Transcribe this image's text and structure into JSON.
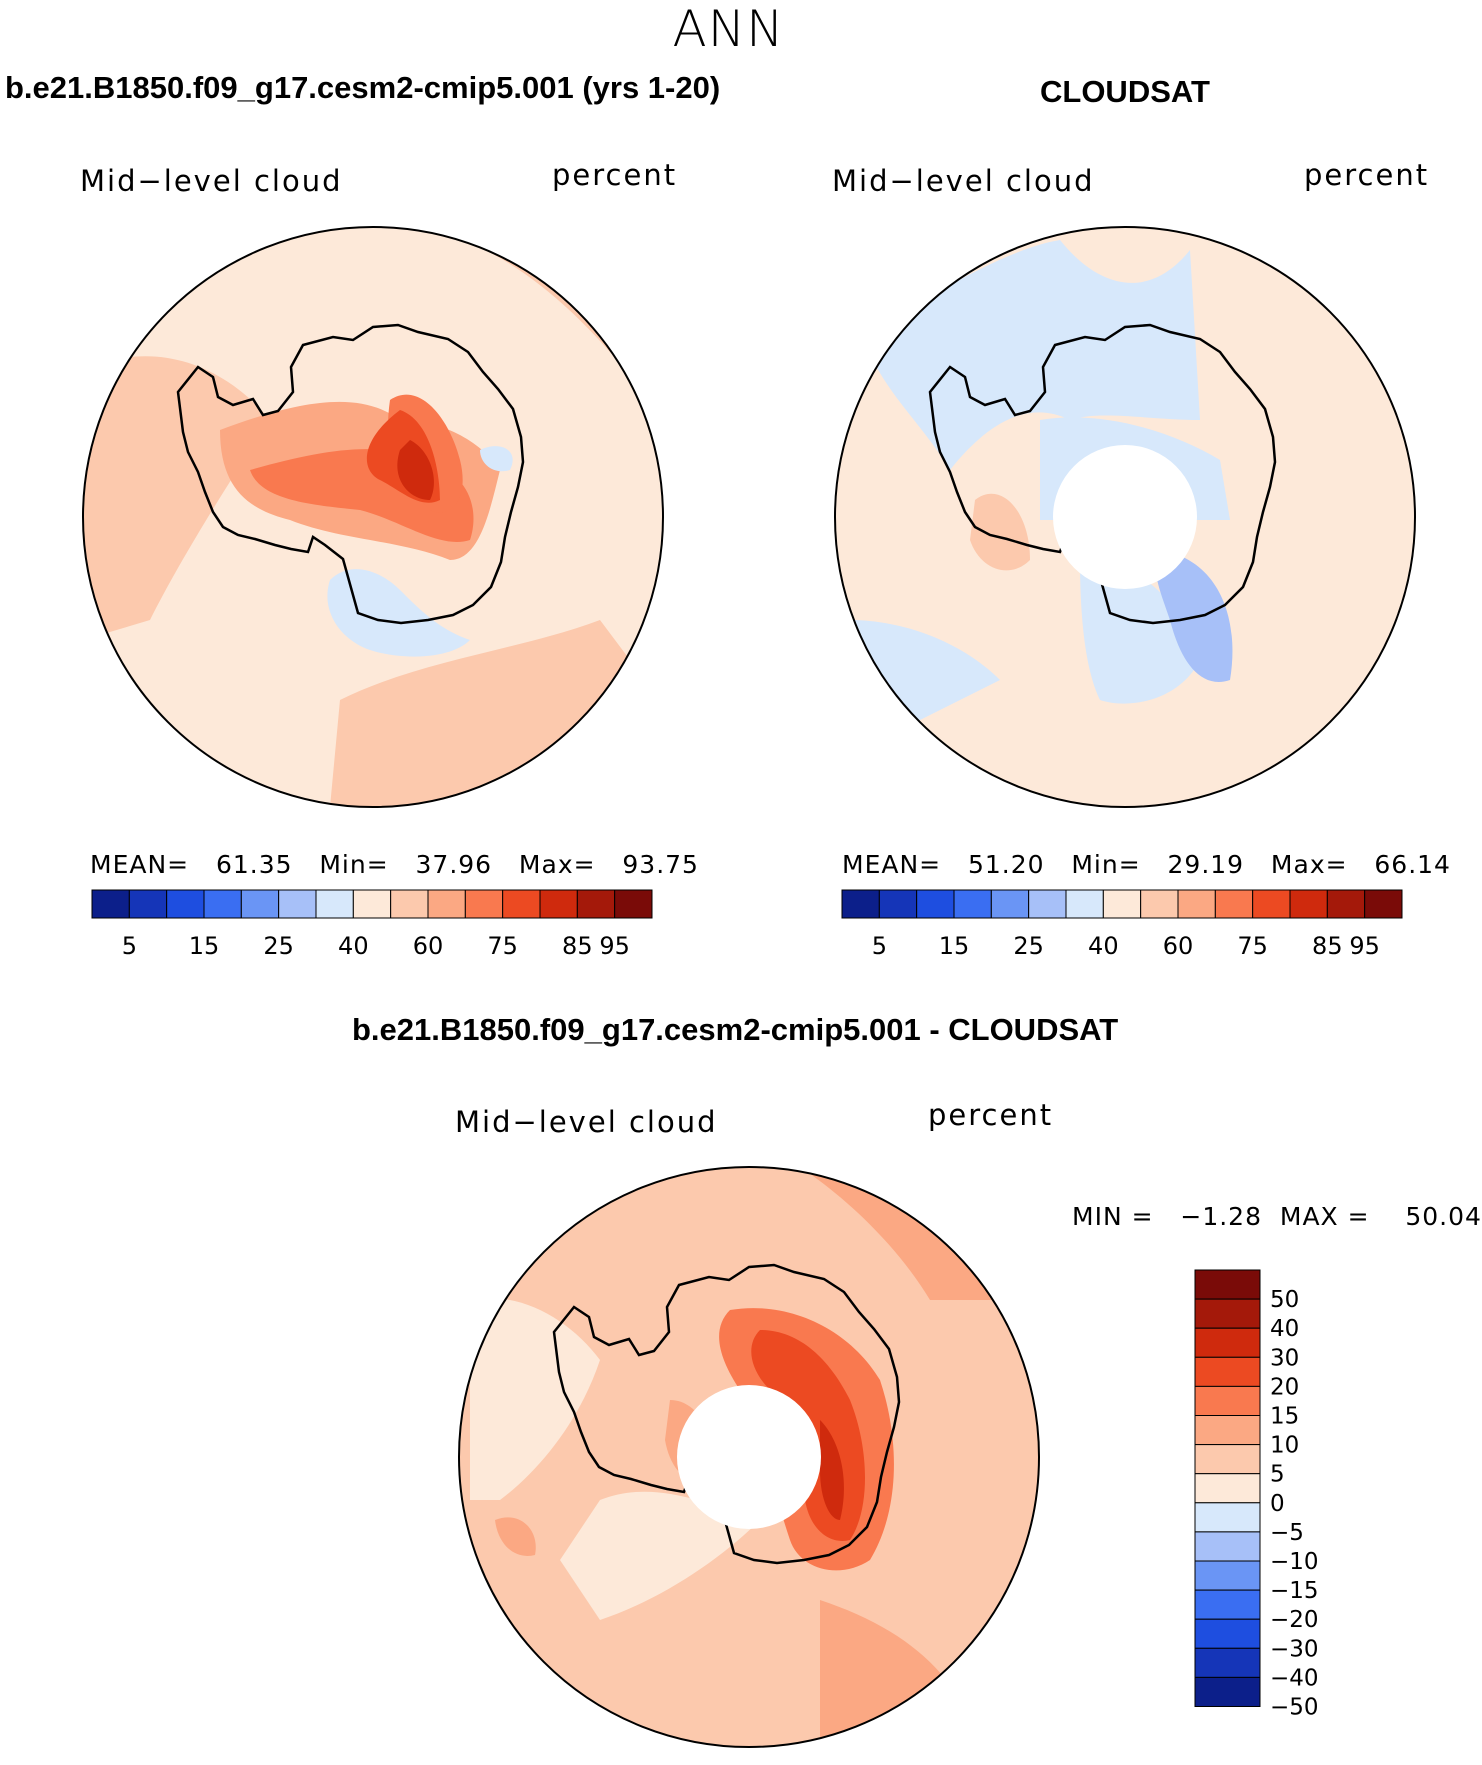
{
  "figure_title": "ANN",
  "panels": {
    "top_left": {
      "title": "b.e21.B1850.f09_g17.cesm2-cmip5.001 (yrs 1-20)",
      "variable": "Mid−level cloud",
      "units": "percent",
      "stats": "MEAN=   61.35   Min=   37.96   Max=   93.75"
    },
    "top_right": {
      "title": "CLOUDSAT",
      "variable": "Mid−level cloud",
      "units": "percent",
      "stats": "MEAN=   51.20   Min=   29.19   Max=   66.14"
    },
    "bottom": {
      "title": "b.e21.B1850.f09_g17.cesm2-cmip5.001 - CLOUDSAT",
      "variable": "Mid−level cloud",
      "units": "percent",
      "stats": "MIN =   −1.28  MAX =    50.04"
    }
  },
  "colorbar_abs": {
    "colors": [
      "#0c1f8a",
      "#1535b8",
      "#1e4ee0",
      "#3a6ef2",
      "#6a95f5",
      "#a7c0f8",
      "#d7e8fb",
      "#fde9d9",
      "#fcc9ad",
      "#fba883",
      "#f9794f",
      "#ec4a22",
      "#cf2a0d",
      "#a4190a",
      "#7a0b08"
    ],
    "tick_labels": [
      "5",
      "15",
      "25",
      "40",
      "60",
      "75",
      "85",
      "95"
    ]
  },
  "colorbar_diff": {
    "colors": [
      "#0c1f8a",
      "#1535b8",
      "#1e4ee0",
      "#3a6ef2",
      "#6a95f5",
      "#a7c0f8",
      "#d7e8fb",
      "#fde9d9",
      "#fcc9ad",
      "#fba883",
      "#f9794f",
      "#ec4a22",
      "#cf2a0d",
      "#a4190a",
      "#7a0b08"
    ],
    "tick_labels": [
      "50",
      "40",
      "30",
      "20",
      "15",
      "10",
      "5",
      "0",
      "−5",
      "−10",
      "−15",
      "−20",
      "−30",
      "−40",
      "−50"
    ]
  }
}
